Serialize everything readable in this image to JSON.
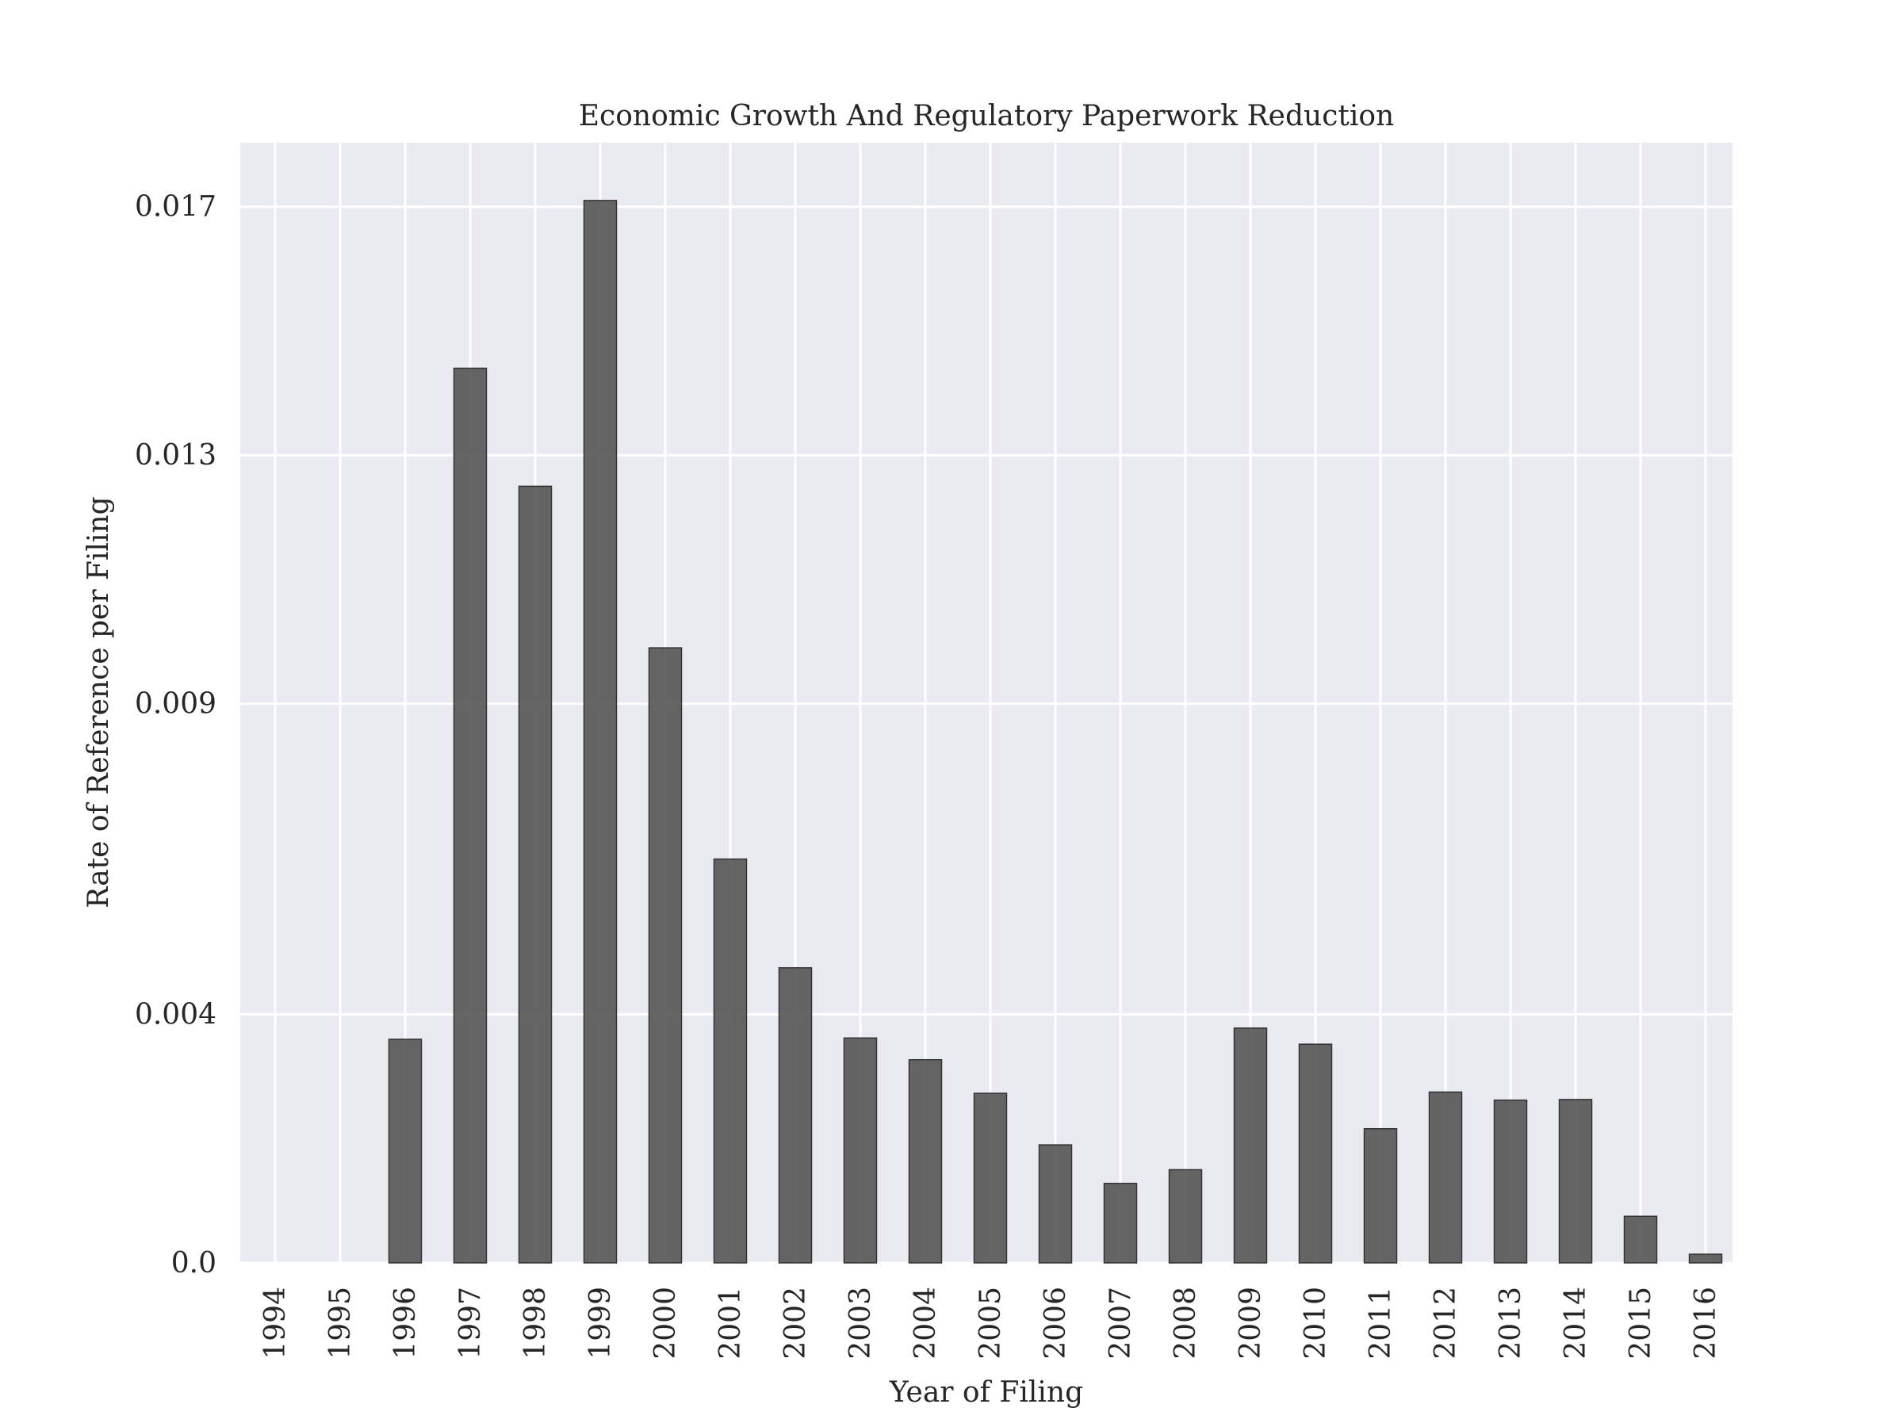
{
  "chart_data": {
    "type": "bar",
    "title": "Economic Growth And Regulatory Paperwork Reduction",
    "xlabel": "Year of Filing",
    "ylabel": "Rate of Reference per Filing",
    "categories": [
      "1994",
      "1995",
      "1996",
      "1997",
      "1998",
      "1999",
      "2000",
      "2001",
      "2002",
      "2003",
      "2004",
      "2005",
      "2006",
      "2007",
      "2008",
      "2009",
      "2010",
      "2011",
      "2012",
      "2013",
      "2014",
      "2015",
      "2016"
    ],
    "values": [
      0.0,
      0.0,
      0.0036,
      0.0144,
      0.0125,
      0.0171,
      0.0099,
      0.0065,
      0.00475,
      0.00362,
      0.00327,
      0.00273,
      0.0019,
      0.00128,
      0.0015,
      0.00378,
      0.00352,
      0.00216,
      0.00275,
      0.00262,
      0.00263,
      0.00075,
      0.00014
    ],
    "yticks": [
      0.0,
      0.004,
      0.009,
      0.013,
      0.017
    ],
    "ytick_labels": [
      "0.0",
      "0.004",
      "0.009",
      "0.013",
      "0.017"
    ],
    "ylim": [
      0.0,
      0.01803
    ],
    "grid": true,
    "colors": {
      "plot_background": "#eaeaf2",
      "grid": "#ffffff",
      "bar_fill": "#555555",
      "bar_edge": "#333333",
      "text": "#262626"
    }
  }
}
